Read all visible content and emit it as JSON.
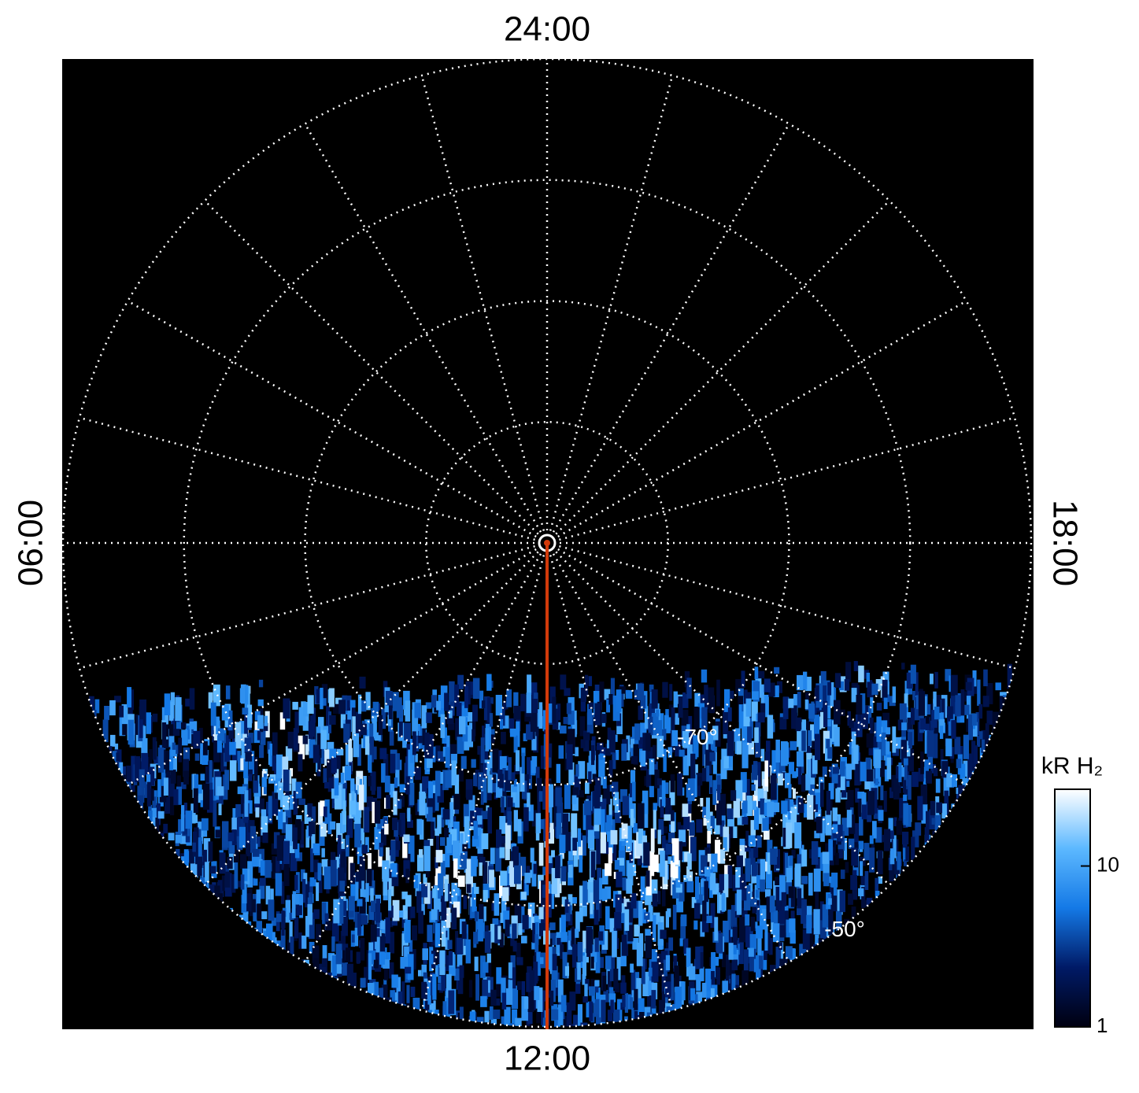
{
  "chart_data": {
    "type": "polar",
    "local_time_labels": {
      "top": "24:00",
      "left": "06:00",
      "bottom": "12:00",
      "right": "18:00"
    },
    "rlim": [
      -90,
      -50
    ],
    "rticks": [
      {
        "value": -70,
        "label": "-70°"
      },
      {
        "value": -50,
        "label": "-50°"
      }
    ],
    "colorbar": {
      "label": "kR H₂",
      "clim": [
        1,
        30
      ],
      "log": true,
      "ticks": [
        1,
        10
      ],
      "colors": [
        "#000010",
        "#001a66",
        "#1479e6",
        "#5cb8ff",
        "#ffffff"
      ]
    },
    "meridian_color": "#d23a0a"
  }
}
